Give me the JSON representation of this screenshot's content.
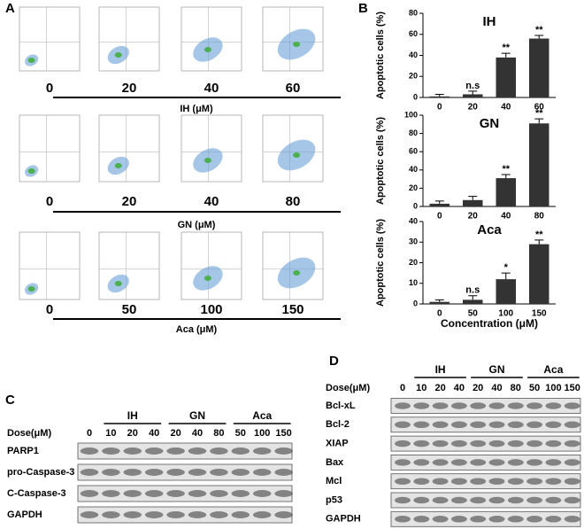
{
  "panel_a": {
    "label": "A",
    "groups": [
      {
        "concentrations": [
          "0",
          "20",
          "40",
          "60"
        ],
        "axis_label": "IH (μM)"
      },
      {
        "concentrations": [
          "0",
          "20",
          "40",
          "80"
        ],
        "axis_label": "GN (μM)"
      },
      {
        "concentrations": [
          "0",
          "50",
          "100",
          "150"
        ],
        "axis_label": "Aca (μM)"
      }
    ]
  },
  "panel_b": {
    "label": "B",
    "x_label": "Concentration (μM)"
  },
  "chart_data": [
    {
      "type": "bar",
      "title": "IH",
      "y_label": "Apoptotic cells (%)",
      "categories": [
        "0",
        "20",
        "40",
        "60"
      ],
      "values": [
        1,
        3,
        38,
        56
      ],
      "errors": [
        2,
        3,
        4,
        3
      ],
      "annotations": [
        null,
        "n.s",
        "**",
        "**"
      ],
      "color": "#333333",
      "ylim": [
        0,
        80
      ],
      "yticks": [
        0,
        20,
        40,
        60,
        80
      ]
    },
    {
      "type": "bar",
      "title": "GN",
      "y_label": "Apoptotic cells (%)",
      "categories": [
        "0",
        "20",
        "40",
        "80"
      ],
      "values": [
        3,
        7,
        31,
        91
      ],
      "errors": [
        3,
        4,
        4,
        5
      ],
      "annotations": [
        null,
        null,
        "**",
        "**"
      ],
      "color": "#333333",
      "ylim": [
        0,
        100
      ],
      "yticks": [
        0,
        20,
        40,
        60,
        80,
        100
      ]
    },
    {
      "type": "bar",
      "title": "Aca",
      "y_label": "Apoptotic cells (%)",
      "categories": [
        "0",
        "50",
        "100",
        "150"
      ],
      "values": [
        1,
        2,
        12,
        29
      ],
      "errors": [
        1,
        2,
        3,
        2
      ],
      "annotations": [
        null,
        "n.s",
        "*",
        "**"
      ],
      "color": "#333333",
      "ylim": [
        0,
        40
      ],
      "yticks": [
        0,
        10,
        20,
        30,
        40
      ]
    }
  ],
  "panel_c": {
    "label": "C",
    "dose_label": "Dose(μM)",
    "groups": [
      "IH",
      "GN",
      "Aca"
    ],
    "doses": [
      "0",
      "10",
      "20",
      "40",
      "20",
      "40",
      "80",
      "50",
      "100",
      "150"
    ],
    "rows": [
      "PARP1",
      "pro-Caspase-3",
      "C-Caspase-3",
      "GAPDH"
    ]
  },
  "panel_d": {
    "label": "D",
    "dose_label": "Dose(μM)",
    "groups": [
      "IH",
      "GN",
      "Aca"
    ],
    "doses": [
      "0",
      "10",
      "20",
      "40",
      "20",
      "40",
      "80",
      "50",
      "100",
      "150"
    ],
    "rows": [
      "Bcl-xL",
      "Bcl-2",
      "XIAP",
      "Bax",
      "Mcl",
      "p53",
      "GAPDH"
    ]
  }
}
